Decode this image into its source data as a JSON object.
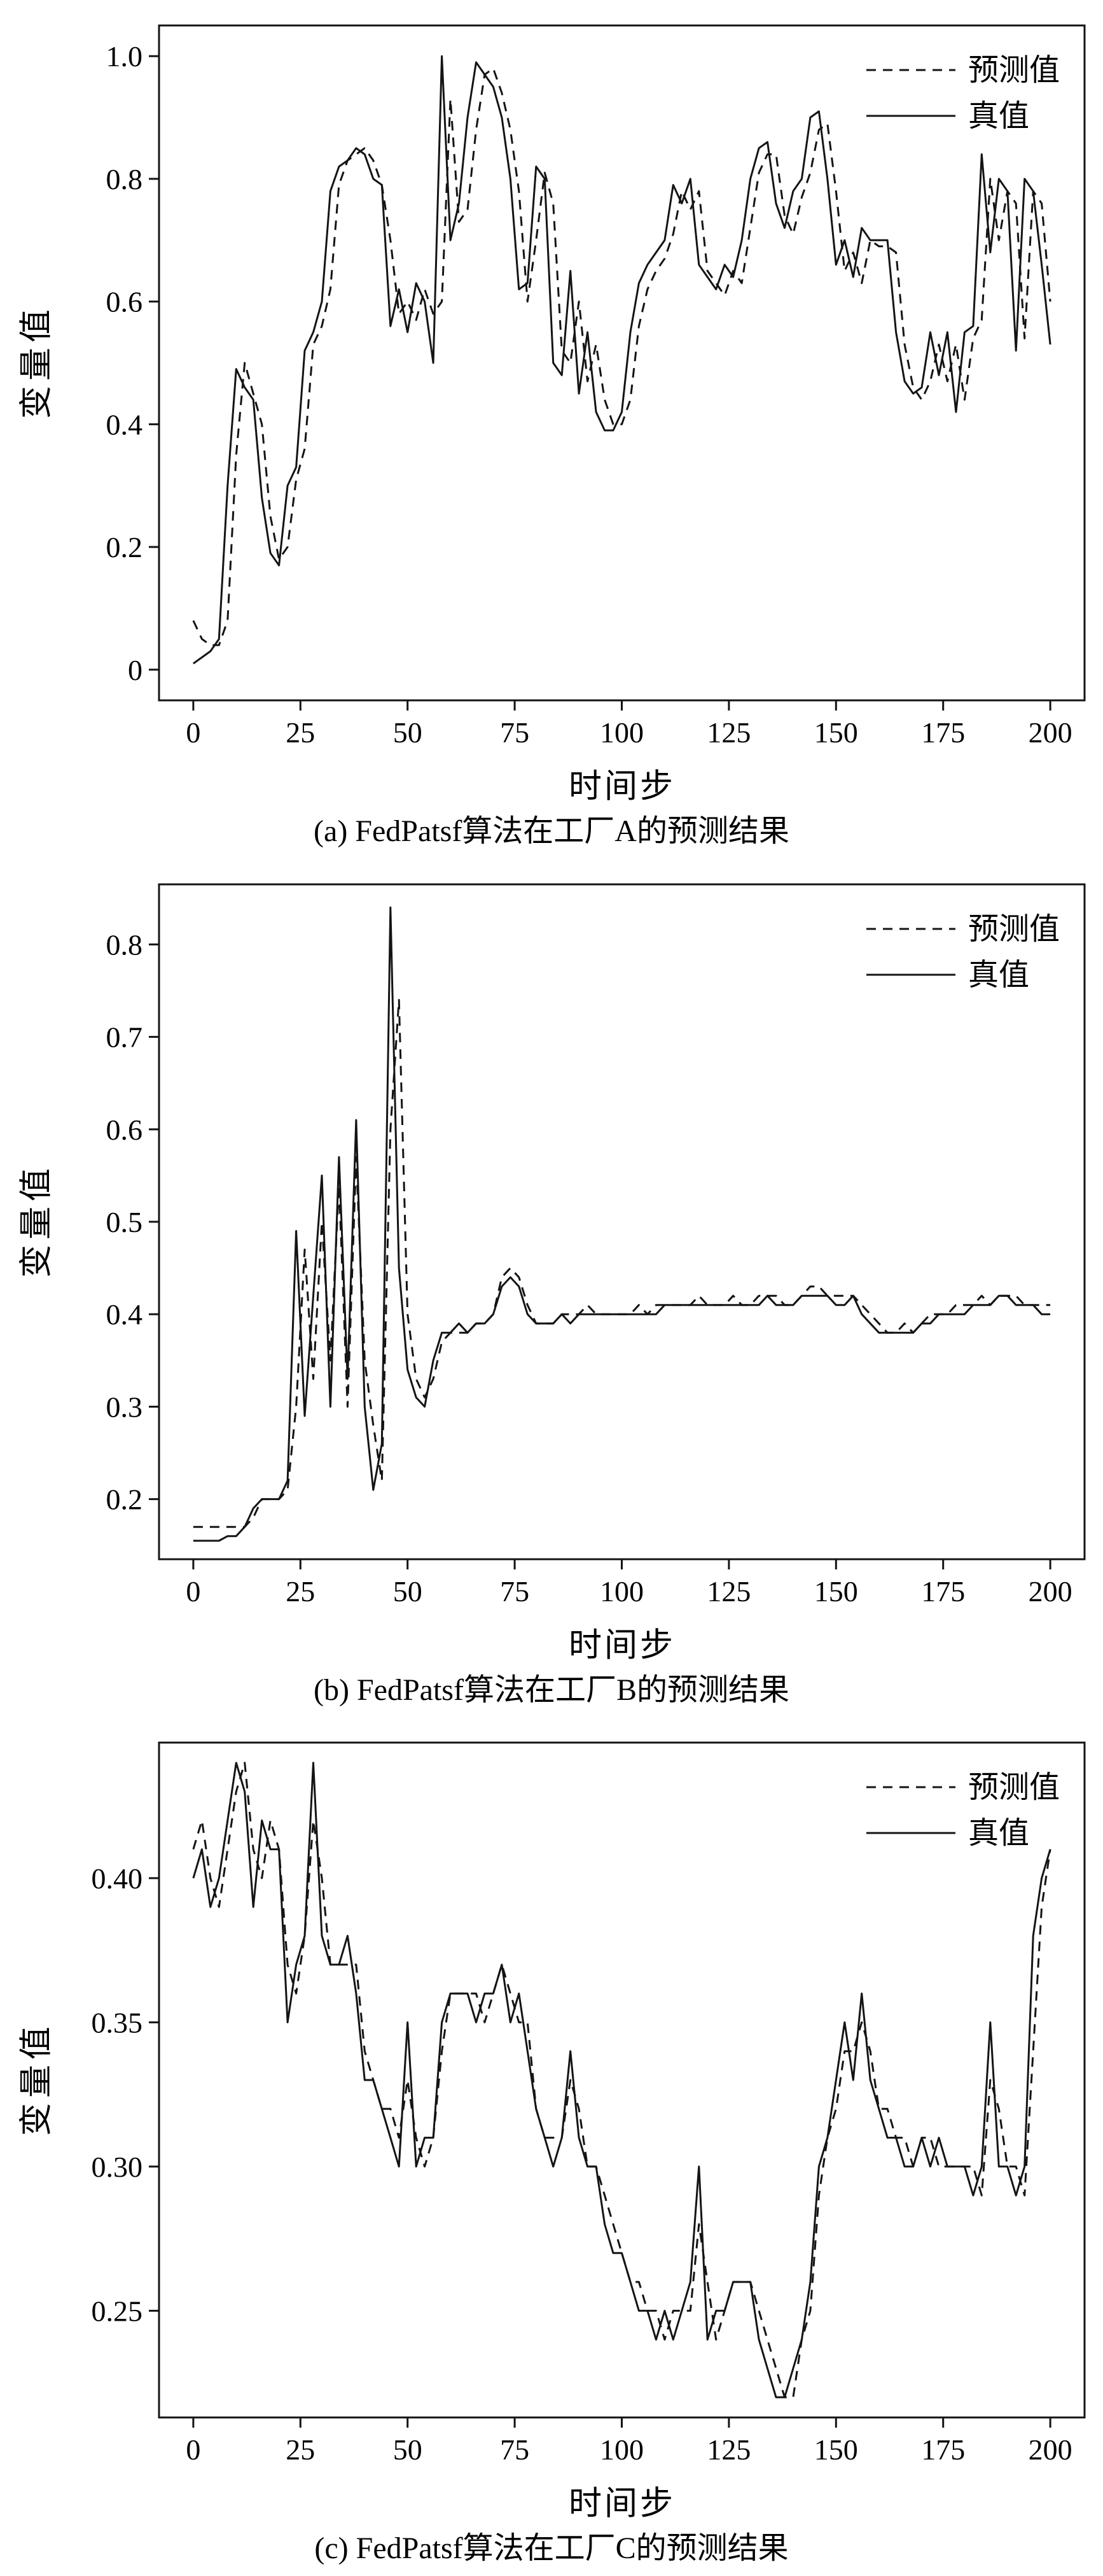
{
  "colors": {
    "line": "#141414",
    "text": "#000000",
    "background": "#ffffff"
  },
  "legend": {
    "pred_label": "预测值",
    "true_label": "真值",
    "position": "top-right"
  },
  "chart_data": [
    {
      "type": "line",
      "title": "(a) FedPatsf算法在工厂A的预测结果",
      "xlabel": "时间步",
      "ylabel": "变量值",
      "x_start": 0,
      "x_step": 2,
      "xlim": [
        -8,
        208
      ],
      "ylim": [
        -0.05,
        1.05
      ],
      "xticks": [
        0,
        25,
        50,
        75,
        100,
        125,
        150,
        175,
        200
      ],
      "yticks": [
        0,
        0.2,
        0.4,
        0.6,
        0.8,
        1.0
      ],
      "ytick_labels": [
        "0",
        "0.2",
        "0.4",
        "0.6",
        "0.8",
        "1.0"
      ],
      "grid": false,
      "legend_position": "top-right",
      "series": [
        {
          "name": "预测值",
          "style": "dashed",
          "values": [
            0.08,
            0.05,
            0.04,
            0.04,
            0.08,
            0.35,
            0.5,
            0.45,
            0.4,
            0.25,
            0.18,
            0.2,
            0.31,
            0.36,
            0.53,
            0.56,
            0.62,
            0.79,
            0.83,
            0.84,
            0.85,
            0.83,
            0.79,
            0.7,
            0.58,
            0.6,
            0.57,
            0.62,
            0.58,
            0.6,
            0.93,
            0.73,
            0.75,
            0.88,
            0.97,
            0.98,
            0.94,
            0.88,
            0.78,
            0.6,
            0.7,
            0.81,
            0.76,
            0.52,
            0.5,
            0.6,
            0.47,
            0.53,
            0.44,
            0.4,
            0.4,
            0.44,
            0.56,
            0.62,
            0.65,
            0.67,
            0.71,
            0.78,
            0.75,
            0.78,
            0.65,
            0.63,
            0.61,
            0.65,
            0.63,
            0.72,
            0.81,
            0.84,
            0.84,
            0.74,
            0.71,
            0.77,
            0.81,
            0.88,
            0.89,
            0.78,
            0.65,
            0.68,
            0.63,
            0.7,
            0.69,
            0.69,
            0.68,
            0.53,
            0.46,
            0.44,
            0.47,
            0.53,
            0.47,
            0.53,
            0.44,
            0.54,
            0.57,
            0.8,
            0.7,
            0.78,
            0.76,
            0.54,
            0.78,
            0.76,
            0.6
          ]
        },
        {
          "name": "真值",
          "style": "solid",
          "values": [
            0.01,
            0.02,
            0.03,
            0.05,
            0.3,
            0.49,
            0.46,
            0.44,
            0.28,
            0.19,
            0.17,
            0.3,
            0.33,
            0.52,
            0.55,
            0.6,
            0.78,
            0.82,
            0.83,
            0.85,
            0.84,
            0.8,
            0.79,
            0.56,
            0.62,
            0.55,
            0.63,
            0.6,
            0.5,
            1.0,
            0.7,
            0.76,
            0.9,
            0.99,
            0.97,
            0.95,
            0.9,
            0.8,
            0.62,
            0.63,
            0.82,
            0.8,
            0.5,
            0.48,
            0.65,
            0.45,
            0.55,
            0.42,
            0.39,
            0.39,
            0.42,
            0.55,
            0.63,
            0.66,
            0.68,
            0.7,
            0.79,
            0.76,
            0.8,
            0.66,
            0.64,
            0.62,
            0.66,
            0.64,
            0.7,
            0.8,
            0.85,
            0.86,
            0.76,
            0.72,
            0.78,
            0.8,
            0.9,
            0.91,
            0.8,
            0.66,
            0.7,
            0.64,
            0.72,
            0.7,
            0.7,
            0.7,
            0.55,
            0.47,
            0.45,
            0.46,
            0.55,
            0.48,
            0.55,
            0.42,
            0.55,
            0.56,
            0.84,
            0.68,
            0.8,
            0.78,
            0.52,
            0.8,
            0.78,
            0.66,
            0.53
          ]
        }
      ]
    },
    {
      "type": "line",
      "title": "(b) FedPatsf算法在工厂B的预测结果",
      "xlabel": "时间步",
      "ylabel": "变量值",
      "x_start": 0,
      "x_step": 2,
      "xlim": [
        -8,
        208
      ],
      "ylim": [
        0.135,
        0.865
      ],
      "xticks": [
        0,
        25,
        50,
        75,
        100,
        125,
        150,
        175,
        200
      ],
      "yticks": [
        0.2,
        0.3,
        0.4,
        0.5,
        0.6,
        0.7,
        0.8
      ],
      "ytick_labels": [
        "0.2",
        "0.3",
        "0.4",
        "0.5",
        "0.6",
        "0.7",
        "0.8"
      ],
      "grid": false,
      "legend_position": "top-right",
      "series": [
        {
          "name": "预测值",
          "style": "dashed",
          "values": [
            0.17,
            0.17,
            0.17,
            0.17,
            0.17,
            0.17,
            0.17,
            0.18,
            0.2,
            0.2,
            0.2,
            0.21,
            0.3,
            0.47,
            0.33,
            0.5,
            0.35,
            0.54,
            0.3,
            0.57,
            0.35,
            0.28,
            0.22,
            0.6,
            0.74,
            0.4,
            0.33,
            0.31,
            0.33,
            0.37,
            0.38,
            0.38,
            0.38,
            0.39,
            0.39,
            0.4,
            0.44,
            0.45,
            0.44,
            0.41,
            0.39,
            0.39,
            0.39,
            0.4,
            0.4,
            0.4,
            0.41,
            0.4,
            0.4,
            0.4,
            0.4,
            0.4,
            0.41,
            0.4,
            0.41,
            0.41,
            0.41,
            0.41,
            0.41,
            0.42,
            0.41,
            0.41,
            0.41,
            0.42,
            0.41,
            0.41,
            0.42,
            0.42,
            0.42,
            0.41,
            0.41,
            0.42,
            0.43,
            0.43,
            0.42,
            0.42,
            0.42,
            0.42,
            0.41,
            0.4,
            0.39,
            0.38,
            0.38,
            0.39,
            0.38,
            0.39,
            0.4,
            0.4,
            0.4,
            0.41,
            0.41,
            0.41,
            0.42,
            0.41,
            0.42,
            0.42,
            0.42,
            0.41,
            0.41,
            0.41,
            0.41
          ]
        },
        {
          "name": "真值",
          "style": "solid",
          "values": [
            0.155,
            0.155,
            0.155,
            0.155,
            0.16,
            0.16,
            0.17,
            0.19,
            0.2,
            0.2,
            0.2,
            0.22,
            0.49,
            0.29,
            0.42,
            0.55,
            0.3,
            0.57,
            0.33,
            0.61,
            0.3,
            0.21,
            0.26,
            0.84,
            0.45,
            0.34,
            0.31,
            0.3,
            0.35,
            0.38,
            0.38,
            0.39,
            0.38,
            0.39,
            0.39,
            0.4,
            0.43,
            0.44,
            0.43,
            0.4,
            0.39,
            0.39,
            0.39,
            0.4,
            0.39,
            0.4,
            0.4,
            0.4,
            0.4,
            0.4,
            0.4,
            0.4,
            0.4,
            0.4,
            0.4,
            0.41,
            0.41,
            0.41,
            0.41,
            0.41,
            0.41,
            0.41,
            0.41,
            0.41,
            0.41,
            0.41,
            0.41,
            0.42,
            0.41,
            0.41,
            0.41,
            0.42,
            0.42,
            0.42,
            0.42,
            0.41,
            0.41,
            0.42,
            0.4,
            0.39,
            0.38,
            0.38,
            0.38,
            0.38,
            0.38,
            0.39,
            0.39,
            0.4,
            0.4,
            0.4,
            0.4,
            0.41,
            0.41,
            0.41,
            0.42,
            0.42,
            0.41,
            0.41,
            0.41,
            0.4,
            0.4
          ]
        }
      ]
    },
    {
      "type": "line",
      "title": "(c) FedPatsf算法在工厂C的预测结果",
      "xlabel": "时间步",
      "ylabel": "变量值",
      "x_start": 0,
      "x_step": 2,
      "xlim": [
        -8,
        208
      ],
      "ylim": [
        0.213,
        0.447
      ],
      "xticks": [
        0,
        25,
        50,
        75,
        100,
        125,
        150,
        175,
        200
      ],
      "yticks": [
        0.25,
        0.3,
        0.35,
        0.4
      ],
      "ytick_labels": [
        "0.25",
        "0.30",
        "0.35",
        "0.40"
      ],
      "grid": false,
      "legend_position": "top-right",
      "series": [
        {
          "name": "预测值",
          "style": "dashed",
          "values": [
            0.41,
            0.42,
            0.4,
            0.39,
            0.41,
            0.43,
            0.44,
            0.41,
            0.4,
            0.42,
            0.41,
            0.37,
            0.36,
            0.38,
            0.42,
            0.4,
            0.37,
            0.37,
            0.37,
            0.37,
            0.34,
            0.33,
            0.32,
            0.32,
            0.31,
            0.33,
            0.31,
            0.3,
            0.31,
            0.34,
            0.36,
            0.36,
            0.36,
            0.36,
            0.35,
            0.36,
            0.37,
            0.36,
            0.35,
            0.35,
            0.32,
            0.31,
            0.31,
            0.31,
            0.33,
            0.32,
            0.3,
            0.3,
            0.29,
            0.28,
            0.27,
            0.26,
            0.26,
            0.25,
            0.25,
            0.24,
            0.25,
            0.25,
            0.25,
            0.28,
            0.26,
            0.24,
            0.25,
            0.26,
            0.26,
            0.26,
            0.25,
            0.24,
            0.23,
            0.22,
            0.22,
            0.24,
            0.25,
            0.29,
            0.31,
            0.32,
            0.34,
            0.34,
            0.35,
            0.34,
            0.32,
            0.32,
            0.31,
            0.31,
            0.3,
            0.31,
            0.31,
            0.3,
            0.3,
            0.3,
            0.3,
            0.3,
            0.29,
            0.33,
            0.32,
            0.3,
            0.3,
            0.29,
            0.34,
            0.39,
            0.41
          ]
        },
        {
          "name": "真值",
          "style": "solid",
          "values": [
            0.4,
            0.41,
            0.39,
            0.4,
            0.42,
            0.44,
            0.43,
            0.39,
            0.42,
            0.41,
            0.41,
            0.35,
            0.37,
            0.38,
            0.44,
            0.38,
            0.37,
            0.37,
            0.38,
            0.36,
            0.33,
            0.33,
            0.32,
            0.31,
            0.3,
            0.35,
            0.3,
            0.31,
            0.31,
            0.35,
            0.36,
            0.36,
            0.36,
            0.35,
            0.36,
            0.36,
            0.37,
            0.35,
            0.36,
            0.34,
            0.32,
            0.31,
            0.3,
            0.31,
            0.34,
            0.31,
            0.3,
            0.3,
            0.28,
            0.27,
            0.27,
            0.26,
            0.25,
            0.25,
            0.24,
            0.25,
            0.24,
            0.25,
            0.26,
            0.3,
            0.24,
            0.25,
            0.25,
            0.26,
            0.26,
            0.26,
            0.24,
            0.23,
            0.22,
            0.22,
            0.23,
            0.24,
            0.26,
            0.3,
            0.31,
            0.33,
            0.35,
            0.33,
            0.36,
            0.33,
            0.32,
            0.31,
            0.31,
            0.3,
            0.3,
            0.31,
            0.3,
            0.31,
            0.3,
            0.3,
            0.3,
            0.29,
            0.3,
            0.35,
            0.3,
            0.3,
            0.29,
            0.3,
            0.38,
            0.4,
            0.41
          ]
        }
      ]
    }
  ]
}
